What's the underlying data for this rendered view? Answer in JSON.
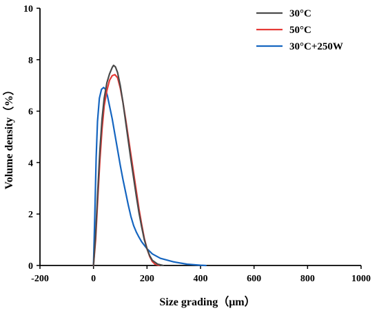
{
  "chart_data": {
    "type": "line",
    "title": "",
    "xlabel": "Size grading（μm）",
    "ylabel": "Volume density（%）",
    "xlim": [
      -200,
      1000
    ],
    "ylim": [
      0,
      10
    ],
    "x_ticks": [
      -200,
      0,
      200,
      400,
      600,
      800,
      1000
    ],
    "y_ticks": [
      0,
      2,
      4,
      6,
      8,
      10
    ],
    "grid": false,
    "legend_position": "top-right",
    "series": [
      {
        "name": "30°C",
        "color": "#4a4a4a",
        "points": [
          [
            0,
            0
          ],
          [
            8,
            1.2
          ],
          [
            16,
            2.9
          ],
          [
            24,
            4.5
          ],
          [
            32,
            5.7
          ],
          [
            40,
            6.5
          ],
          [
            50,
            7.1
          ],
          [
            60,
            7.45
          ],
          [
            70,
            7.7
          ],
          [
            75,
            7.78
          ],
          [
            82,
            7.72
          ],
          [
            90,
            7.5
          ],
          [
            100,
            7.0
          ],
          [
            110,
            6.35
          ],
          [
            120,
            5.6
          ],
          [
            130,
            4.85
          ],
          [
            140,
            4.1
          ],
          [
            150,
            3.4
          ],
          [
            160,
            2.7
          ],
          [
            170,
            2.05
          ],
          [
            180,
            1.5
          ],
          [
            190,
            1.0
          ],
          [
            200,
            0.65
          ],
          [
            210,
            0.38
          ],
          [
            220,
            0.2
          ],
          [
            240,
            0.05
          ],
          [
            260,
            0
          ]
        ]
      },
      {
        "name": "50°C",
        "color": "#e53935",
        "points": [
          [
            0,
            0
          ],
          [
            8,
            1.0
          ],
          [
            16,
            2.6
          ],
          [
            24,
            4.1
          ],
          [
            32,
            5.3
          ],
          [
            40,
            6.2
          ],
          [
            50,
            6.8
          ],
          [
            60,
            7.2
          ],
          [
            70,
            7.38
          ],
          [
            80,
            7.42
          ],
          [
            90,
            7.3
          ],
          [
            100,
            6.9
          ],
          [
            110,
            6.35
          ],
          [
            120,
            5.7
          ],
          [
            130,
            5.0
          ],
          [
            140,
            4.3
          ],
          [
            150,
            3.6
          ],
          [
            160,
            2.9
          ],
          [
            170,
            2.2
          ],
          [
            180,
            1.6
          ],
          [
            190,
            1.05
          ],
          [
            200,
            0.65
          ],
          [
            210,
            0.35
          ],
          [
            220,
            0.15
          ],
          [
            230,
            0.05
          ],
          [
            245,
            0
          ]
        ]
      },
      {
        "name": "30°C+250W",
        "color": "#1565c0",
        "points": [
          [
            0,
            0
          ],
          [
            5,
            2.0
          ],
          [
            10,
            4.2
          ],
          [
            15,
            5.6
          ],
          [
            22,
            6.5
          ],
          [
            30,
            6.85
          ],
          [
            38,
            6.92
          ],
          [
            45,
            6.85
          ],
          [
            52,
            6.6
          ],
          [
            60,
            6.2
          ],
          [
            70,
            5.7
          ],
          [
            80,
            5.1
          ],
          [
            90,
            4.5
          ],
          [
            100,
            3.9
          ],
          [
            110,
            3.35
          ],
          [
            120,
            2.85
          ],
          [
            130,
            2.35
          ],
          [
            140,
            1.9
          ],
          [
            150,
            1.55
          ],
          [
            160,
            1.3
          ],
          [
            170,
            1.1
          ],
          [
            180,
            0.92
          ],
          [
            200,
            0.65
          ],
          [
            220,
            0.45
          ],
          [
            250,
            0.28
          ],
          [
            300,
            0.14
          ],
          [
            350,
            0.05
          ],
          [
            400,
            0.01
          ],
          [
            420,
            0
          ]
        ]
      }
    ]
  }
}
